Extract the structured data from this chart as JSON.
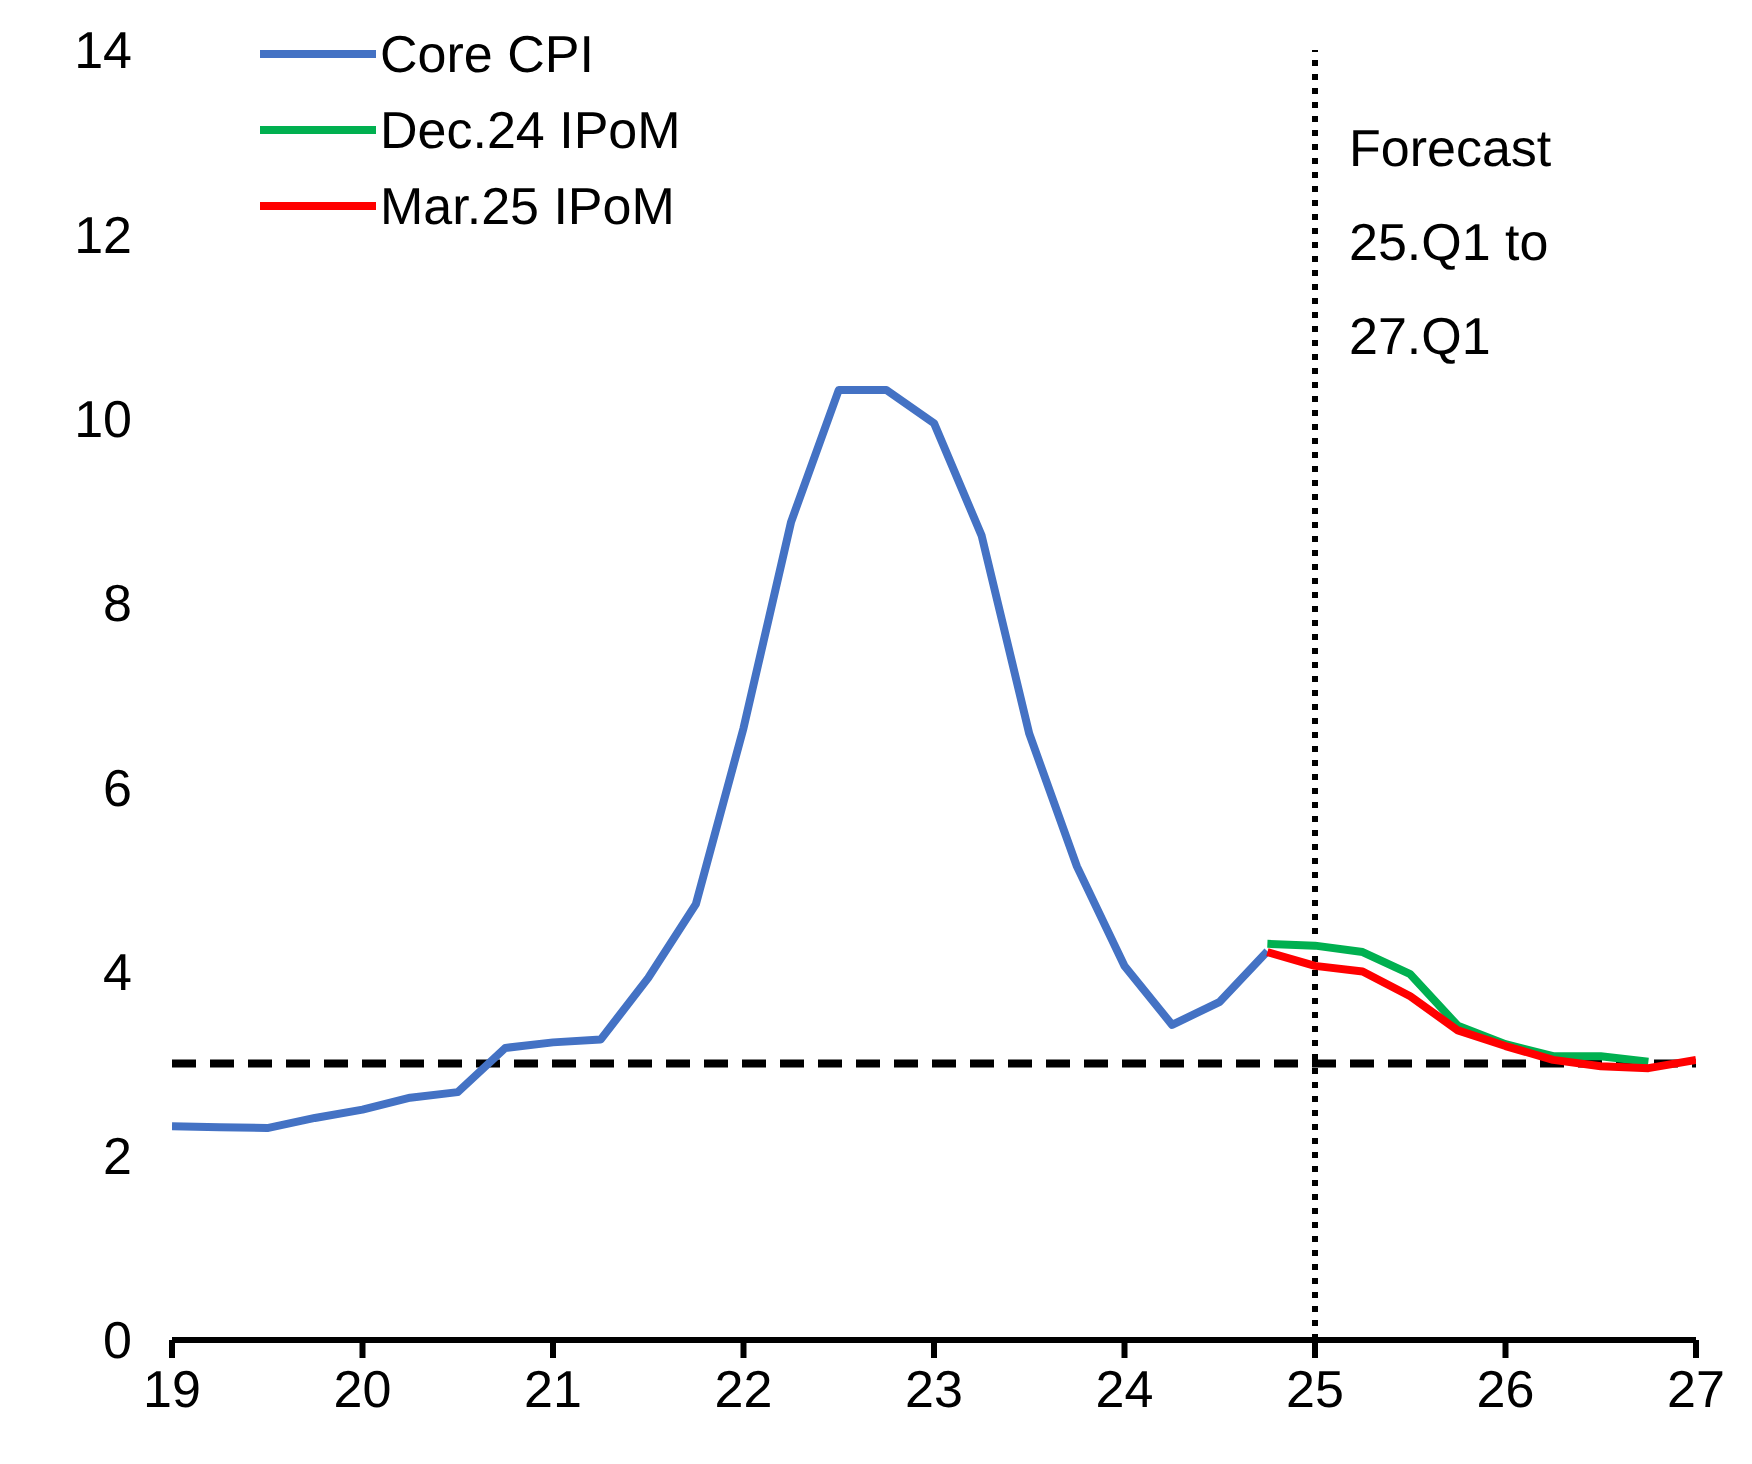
{
  "chart_data": {
    "type": "line",
    "series": [
      {
        "name": "Core CPI",
        "color": "#4472c4",
        "x": [
          19,
          19.25,
          19.5,
          19.75,
          20,
          20.25,
          20.5,
          20.75,
          21,
          21.25,
          21.5,
          21.75,
          22,
          22.25,
          22.5,
          22.75,
          23,
          23.25,
          23.5,
          23.75,
          24,
          24.25,
          24.5,
          24.75
        ],
        "values": [
          2.32,
          2.31,
          2.3,
          2.41,
          2.5,
          2.63,
          2.69,
          3.17,
          3.23,
          3.26,
          3.93,
          4.73,
          6.64,
          8.88,
          10.31,
          10.31,
          9.95,
          8.73,
          6.58,
          5.14,
          4.06,
          3.42,
          3.67,
          4.22
        ]
      },
      {
        "name": "Dec.24 IPoM",
        "color": "#00b050",
        "x": [
          24.75,
          25,
          25.25,
          25.5,
          25.75,
          26,
          26.25,
          26.5,
          26.75
        ],
        "values": [
          4.3,
          4.28,
          4.21,
          3.97,
          3.41,
          3.21,
          3.08,
          3.08,
          3.02
        ]
      },
      {
        "name": "Mar.25 IPoM",
        "color": "#ff0000",
        "x": [
          24.75,
          25,
          25.25,
          25.5,
          25.75,
          26,
          26.25,
          26.5,
          26.75,
          27
        ],
        "values": [
          4.21,
          4.06,
          4.0,
          3.73,
          3.36,
          3.19,
          3.04,
          2.97,
          2.95,
          3.04
        ]
      }
    ],
    "xlim": [
      19,
      27
    ],
    "xticks": [
      19,
      20,
      21,
      22,
      23,
      24,
      25,
      26,
      27
    ],
    "ylim": [
      0,
      14
    ],
    "yticks": [
      0,
      2,
      4,
      6,
      8,
      10,
      12,
      14
    ],
    "ref_lines": [
      {
        "axis": "y",
        "value": 3,
        "label": null,
        "color": "#000000",
        "line_style": "dashed"
      },
      {
        "axis": "x",
        "value": 25,
        "label": "Forecast\n25.Q1 to\n27.Q1",
        "color": "#000000",
        "line_style": "dotted"
      }
    ],
    "legend": "top left",
    "grid": false,
    "marker": "none",
    "line_style": "solid"
  }
}
